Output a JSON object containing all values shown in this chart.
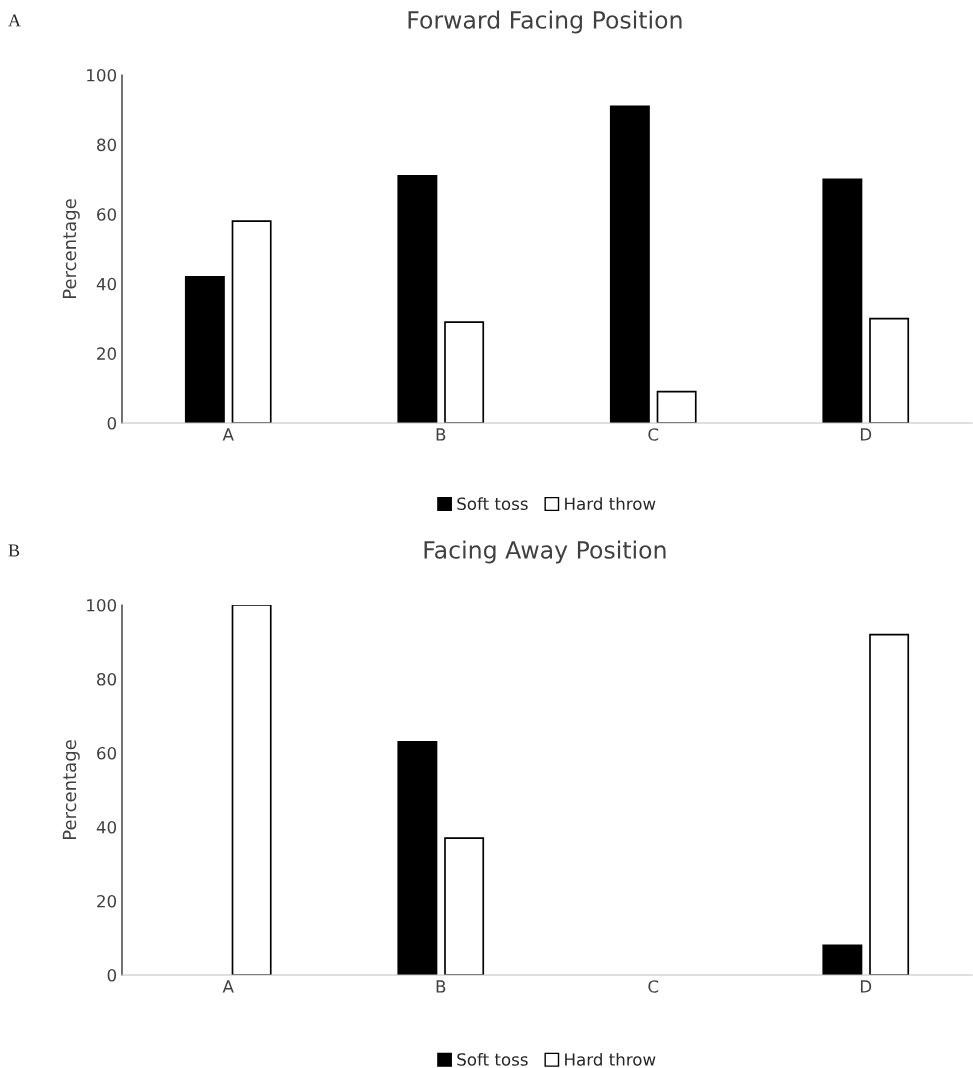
{
  "chart_data": [
    {
      "type": "bar",
      "title": "Forward Facing Position",
      "ylabel": "Percentage",
      "annotations": [
        "A"
      ],
      "categories": [
        "A",
        "B",
        "C",
        "D"
      ],
      "series": [
        {
          "name": "Soft toss",
          "color": "#000000",
          "values": [
            42,
            71,
            91,
            70
          ]
        },
        {
          "name": "Hard throw",
          "color": "#ffffff",
          "values": [
            58,
            29,
            9,
            30
          ]
        }
      ],
      "ylim": [
        0,
        100
      ],
      "yticks": [
        0,
        20,
        40,
        60,
        80,
        100
      ],
      "grid": false,
      "legend": "bottom"
    },
    {
      "type": "bar",
      "title": "Facing Away Position",
      "ylabel": "Percentage",
      "annotations": [
        "B"
      ],
      "categories": [
        "A",
        "B",
        "C",
        "D"
      ],
      "series": [
        {
          "name": "Soft toss",
          "color": "#000000",
          "values": [
            0,
            63,
            0,
            8
          ]
        },
        {
          "name": "Hard throw",
          "color": "#ffffff",
          "values": [
            100,
            37,
            0,
            92
          ]
        }
      ],
      "ylim": [
        0,
        100
      ],
      "yticks": [
        0,
        20,
        40,
        60,
        80,
        100
      ],
      "grid": false,
      "legend": "bottom"
    }
  ]
}
